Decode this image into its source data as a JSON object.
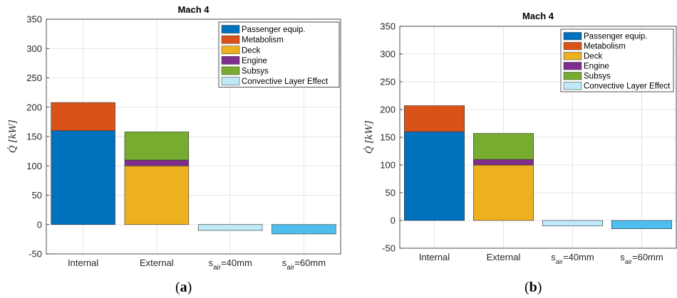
{
  "chart_data": [
    {
      "type": "stacked-bar",
      "title": "Mach 4",
      "panel_label": "a",
      "ylabel": "Q̇ [kW]",
      "ylim": [
        -50,
        350
      ],
      "yticks": [
        "-50",
        "0",
        "50",
        "100",
        "150",
        "200",
        "250",
        "300",
        "350"
      ],
      "grid": true,
      "legend_position": "top-right",
      "categories": [
        "Internal",
        "External",
        "s_air=40mm",
        "s_air=60mm"
      ],
      "category_labels": [
        {
          "main": "Internal",
          "sub": "",
          "tail": ""
        },
        {
          "main": "External",
          "sub": "",
          "tail": ""
        },
        {
          "main": "s",
          "sub": "air",
          "tail": "=40mm"
        },
        {
          "main": "s",
          "sub": "air",
          "tail": "=60mm"
        }
      ],
      "series": [
        {
          "name": "Passenger equip.",
          "color": "#0072BD",
          "values": [
            160,
            0,
            0,
            0
          ]
        },
        {
          "name": "Metabolism",
          "color": "#D95319",
          "values": [
            48,
            0,
            0,
            0
          ]
        },
        {
          "name": "Deck",
          "color": "#EDB120",
          "values": [
            0,
            100,
            0,
            0
          ]
        },
        {
          "name": "Engine",
          "color": "#7E2F8E",
          "values": [
            0,
            10,
            0,
            0
          ]
        },
        {
          "name": "Subsys",
          "color": "#77AC30",
          "values": [
            0,
            48,
            0,
            0
          ]
        },
        {
          "name": "Convective Layer Effect",
          "color": "#BFE9F7",
          "values": [
            0,
            0,
            -10,
            0
          ]
        }
      ],
      "extra_bars": [
        {
          "category": "s_air=60mm",
          "color": "#4DBEEE",
          "value": -16
        }
      ]
    },
    {
      "type": "stacked-bar",
      "title": "Mach 4",
      "panel_label": "b",
      "ylabel": "Q̇ [kW]",
      "ylim": [
        -50,
        350
      ],
      "yticks": [
        "-50",
        "0",
        "50",
        "100",
        "150",
        "200",
        "250",
        "300",
        "350"
      ],
      "grid": true,
      "legend_position": "top-right",
      "categories": [
        "Internal",
        "External",
        "s_air=40mm",
        "s_air=60mm"
      ],
      "category_labels": [
        {
          "main": "Internal",
          "sub": "",
          "tail": ""
        },
        {
          "main": "External",
          "sub": "",
          "tail": ""
        },
        {
          "main": "s",
          "sub": "air",
          "tail": "=40mm"
        },
        {
          "main": "s",
          "sub": "air",
          "tail": "=60mm"
        }
      ],
      "series": [
        {
          "name": "Passenger equip.",
          "color": "#0072BD",
          "values": [
            160,
            0,
            0,
            0
          ]
        },
        {
          "name": "Metabolism",
          "color": "#D95319",
          "values": [
            47,
            0,
            0,
            0
          ]
        },
        {
          "name": "Deck",
          "color": "#EDB120",
          "values": [
            0,
            100,
            0,
            0
          ]
        },
        {
          "name": "Engine",
          "color": "#7E2F8E",
          "values": [
            0,
            10,
            0,
            0
          ]
        },
        {
          "name": "Subsys",
          "color": "#77AC30",
          "values": [
            0,
            47,
            0,
            0
          ]
        },
        {
          "name": "Convective Layer Effect",
          "color": "#BFE9F7",
          "values": [
            0,
            0,
            -10,
            0
          ]
        }
      ],
      "extra_bars": [
        {
          "category": "s_air=60mm",
          "color": "#4DBEEE",
          "value": -15
        }
      ]
    }
  ]
}
